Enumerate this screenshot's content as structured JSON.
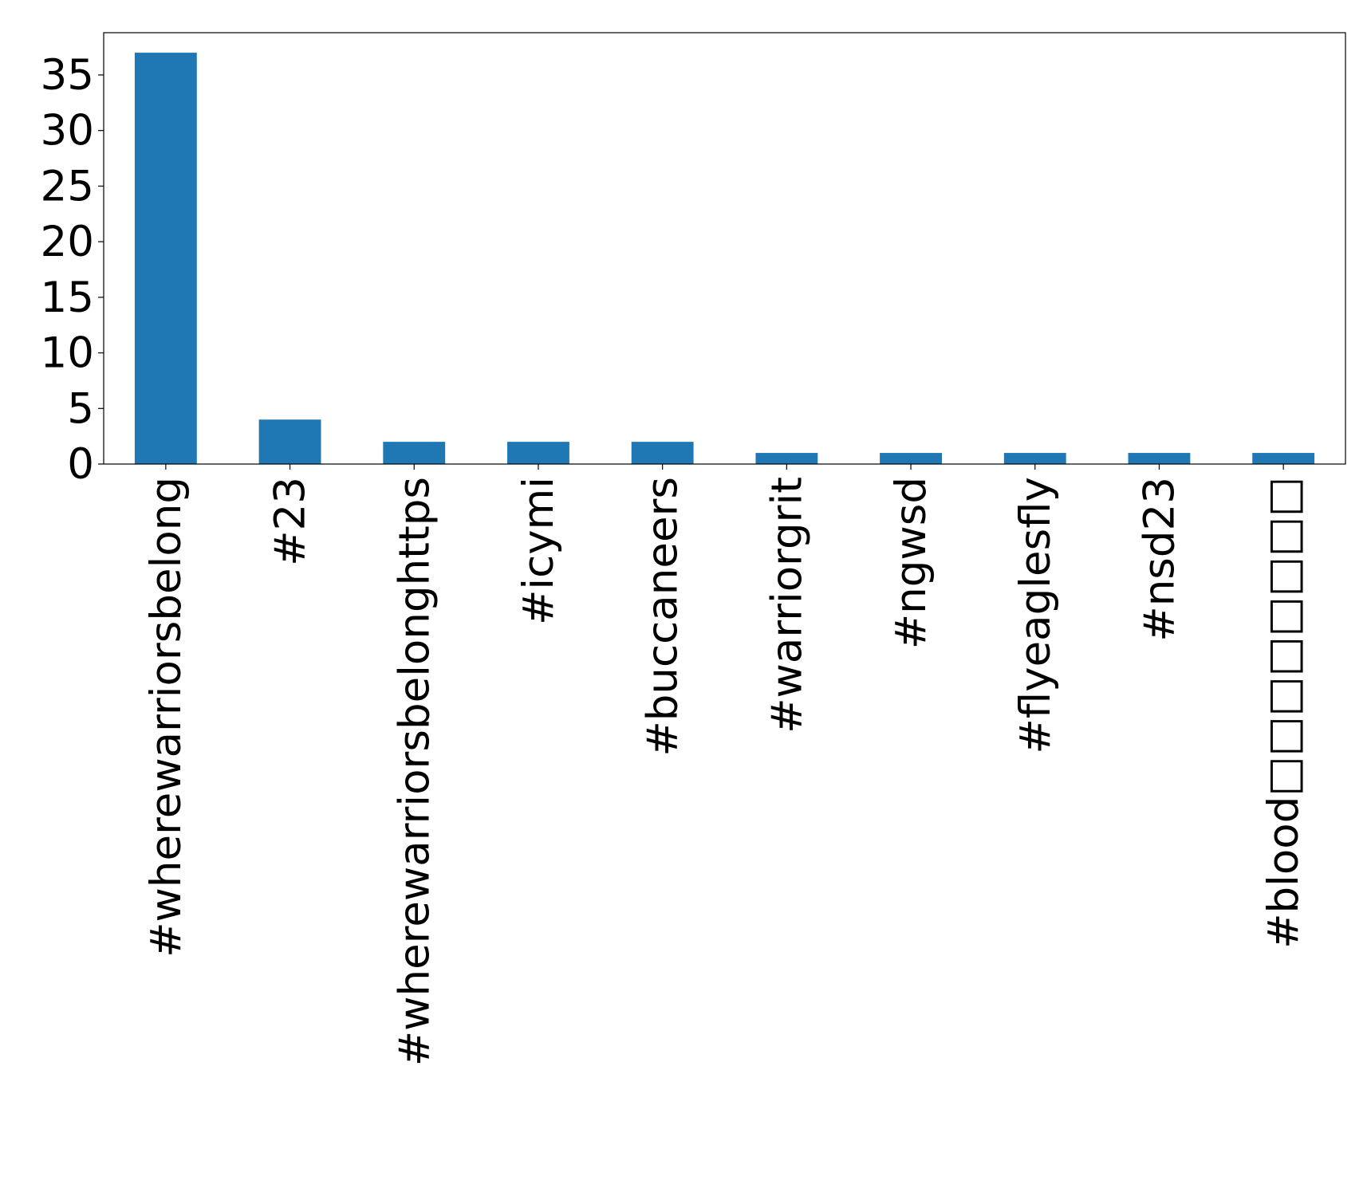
{
  "chart_data": {
    "type": "bar",
    "title": "",
    "xlabel": "",
    "ylabel": "",
    "categories": [
      "#wherewarriorsbelong",
      "#23",
      "#wherewarriorsbelonghttps",
      "#icymi",
      "#buccaneers",
      "#warriorgrit",
      "#ngwsd",
      "#flyeaglesfly",
      "#nsd23",
      "#blood□□□□□□□□"
    ],
    "values": [
      37,
      4,
      2,
      2,
      2,
      1,
      1,
      1,
      1,
      1
    ],
    "ylim": [
      0,
      38.8
    ],
    "yticks": [
      0,
      5,
      10,
      15,
      20,
      25,
      30,
      35
    ],
    "grid": false,
    "legend": "none",
    "colors": {
      "bar": "#1f77b4",
      "axis": "#000000",
      "background": "#ffffff"
    }
  }
}
